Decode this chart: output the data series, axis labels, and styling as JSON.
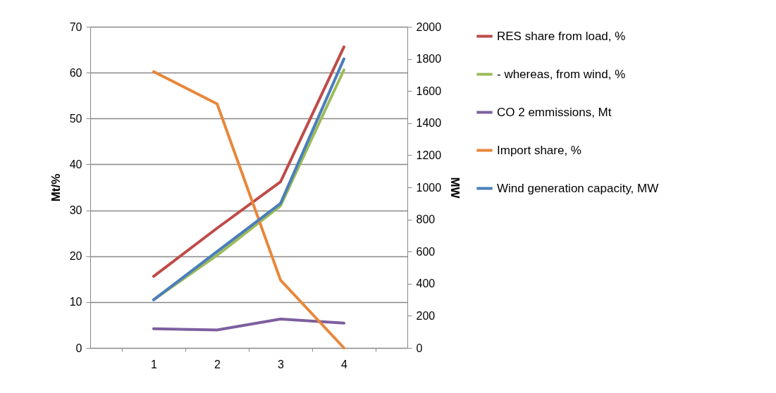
{
  "chart_data": {
    "type": "line",
    "ylabel": "Mt/%",
    "y2label": "MW",
    "categories": [
      "1",
      "2",
      "3",
      "4"
    ],
    "series": [
      {
        "name": "RES share from load, %",
        "color": "#be4b48",
        "values": [
          15.6,
          26.1,
          36.2,
          65.6
        ]
      },
      {
        "name": "- whereas, from wind, %",
        "color": "#9bbb59",
        "values": [
          10.5,
          20.2,
          31.0,
          60.6
        ]
      },
      {
        "name": "CO 2 emmissions, Mt",
        "color": "#7d5fa0",
        "values": [
          4.2,
          3.9,
          6.3,
          5.4
        ]
      },
      {
        "name": "Import share, %",
        "color": "#e8873a",
        "values": [
          60.2,
          53.2,
          14.8,
          0
        ]
      },
      {
        "name": "Wind generation capacity, MW",
        "color": "#4a7ebb",
        "values": [
          300,
          600,
          900,
          1800
        ],
        "axis": "y2"
      }
    ],
    "ylim": [
      0,
      70
    ],
    "yticks": [
      0,
      10,
      20,
      30,
      40,
      50,
      60,
      70
    ],
    "y2lim": [
      0,
      2000
    ],
    "y2ticks": [
      0,
      200,
      400,
      600,
      800,
      1000,
      1200,
      1400,
      1600,
      1800,
      2000
    ],
    "grid": "y",
    "legend": "right",
    "line_style": "solid",
    "marker": "none"
  }
}
